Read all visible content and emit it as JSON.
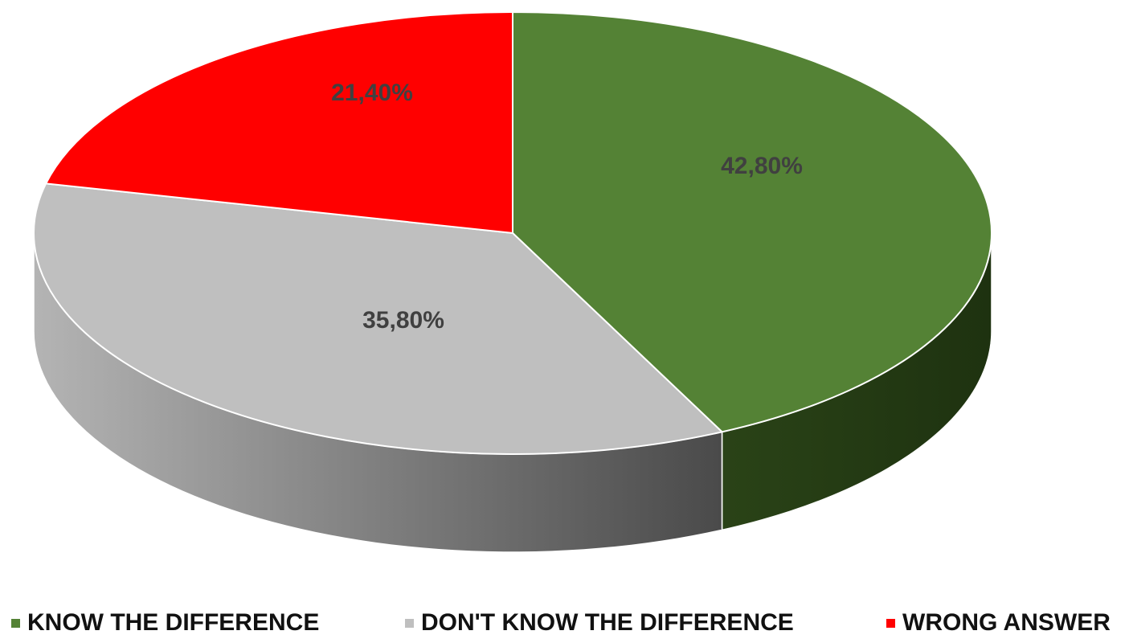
{
  "chart_data": {
    "type": "pie",
    "style": "3d-pie",
    "title": "",
    "legend_position": "bottom",
    "slices": [
      {
        "label": "KNOW THE DIFFERENCE",
        "value": 42.8,
        "display": "42,80%",
        "color": "#548235",
        "side_color": "#223612"
      },
      {
        "label": "DON'T KNOW THE DIFFERENCE",
        "value": 35.8,
        "display": "35,80%",
        "color": "#bfbfbf",
        "side_color": "#8c8c8c"
      },
      {
        "label": "WRONG ANSWER",
        "value": 21.4,
        "display": "21,40%",
        "color": "#ff0000",
        "side_color": "#b30000"
      }
    ]
  }
}
